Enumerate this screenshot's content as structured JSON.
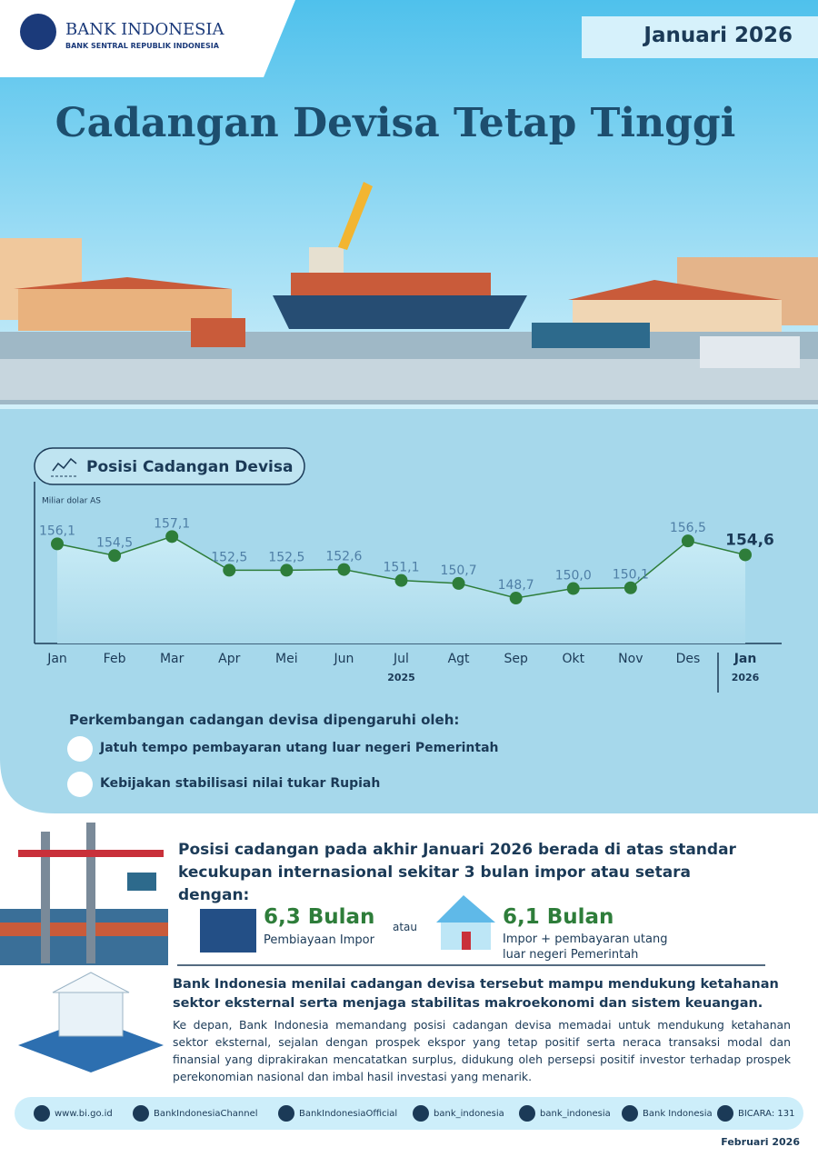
{
  "header": {
    "logo_name": "BANK INDONESIA",
    "logo_sub": "BANK SENTRAL REPUBLIK INDONESIA",
    "period": "Januari 2026",
    "title": "Cadangan Devisa Tetap Tinggi"
  },
  "chart_data": {
    "type": "line",
    "title": "Posisi Cadangan Devisa",
    "y_label": "Miliar dolar AS",
    "categories": [
      "Jan",
      "Feb",
      "Mar",
      "Apr",
      "Mei",
      "Jun",
      "Jul",
      "Agt",
      "Sep",
      "Okt",
      "Nov",
      "Des",
      "Jan"
    ],
    "years": [
      "2025",
      "2026"
    ],
    "values": [
      156.1,
      154.5,
      157.1,
      152.5,
      152.5,
      152.6,
      151.1,
      150.7,
      148.7,
      150.0,
      150.1,
      156.5,
      154.6
    ],
    "value_labels": [
      "156,1",
      "154,5",
      "157,1",
      "152,5",
      "152,5",
      "152,6",
      "151,1",
      "150,7",
      "148,7",
      "150,0",
      "150,1",
      "156,5",
      "154,6"
    ],
    "color": "#2e7d3a",
    "ylim": [
      142.5,
      159
    ]
  },
  "factors": {
    "heading": "Perkembangan cadangan devisa dipengaruhi oleh:",
    "items": [
      "Jatuh tempo pembayaran utang luar negeri Pemerintah",
      "Kebijakan stabilisasi nilai tukar Rupiah"
    ]
  },
  "adequacy": {
    "statement": "Posisi cadangan pada akhir Januari 2026 berada di atas standar kecukupan internasional sekitar 3 bulan impor atau setara dengan:",
    "connector": "atau",
    "options": [
      {
        "value": "6,3 Bulan",
        "label": "Pembiayaan Impor"
      },
      {
        "value": "6,1 Bulan",
        "label": "Impor + pembayaran utang luar negeri Pemerintah"
      }
    ]
  },
  "assessment": {
    "headline": "Bank Indonesia menilai cadangan devisa tersebut mampu mendukung ketahanan sektor eksternal serta menjaga stabilitas makroekonomi dan sistem keuangan.",
    "body": "Ke depan, Bank Indonesia memandang posisi cadangan devisa memadai untuk mendukung ketahanan sektor eksternal, sejalan dengan prospek ekspor yang tetap positif serta neraca transaksi modal dan finansial yang diprakirakan mencatatkan surplus, didukung oleh persepsi positif investor terhadap prospek perekonomian nasional dan imbal hasil investasi yang menarik."
  },
  "footer": {
    "links": [
      "www.bi.go.id",
      "BankIndonesiaChannel",
      "BankIndonesiaOfficial",
      "bank_indonesia",
      "bank_indonesia",
      "Bank Indonesia",
      "BICARA: 131"
    ],
    "date": "Februari 2026"
  }
}
